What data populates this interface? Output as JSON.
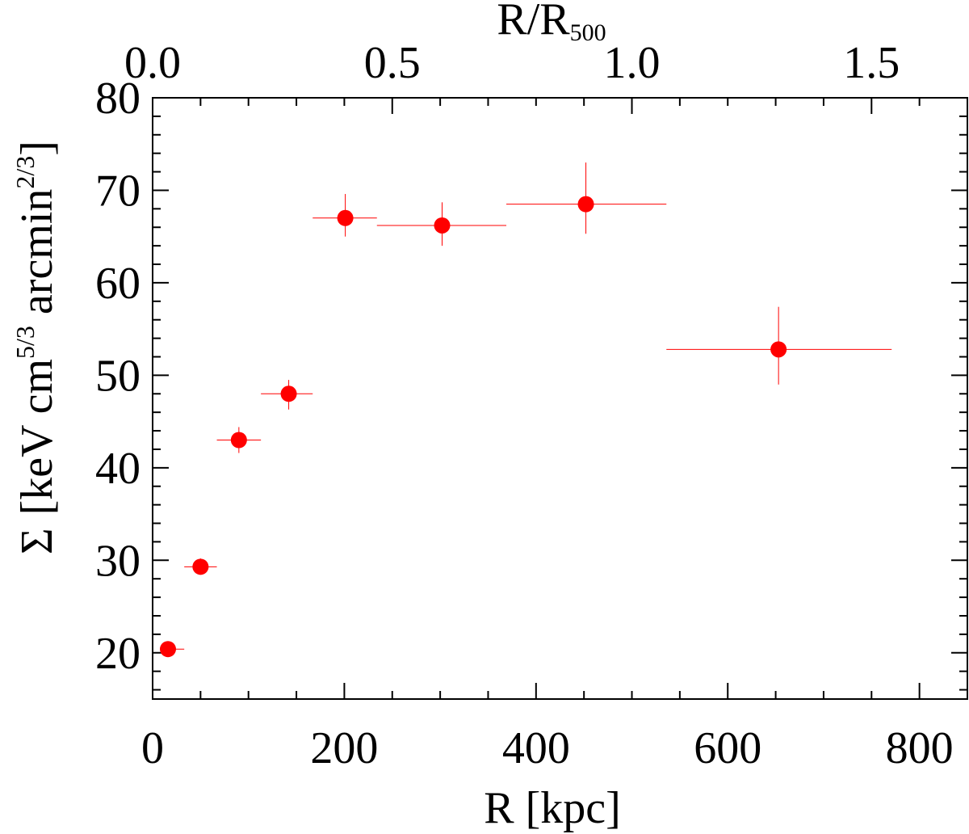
{
  "chart_data": {
    "type": "scatter",
    "x_axis": {
      "label": "R [kpc]",
      "range": [
        0,
        850
      ],
      "major_ticks": [
        0,
        200,
        400,
        600,
        800
      ],
      "minor_step": 50
    },
    "top_axis": {
      "label_main": "R/R",
      "label_sub": "500",
      "major_ticks": [
        0.0,
        0.5,
        1.0,
        1.5
      ],
      "tick_labels": [
        "0.0",
        "0.5",
        "1.0",
        "1.5"
      ],
      "minor_step": 0.1,
      "kpc_per_unit": 500
    },
    "y_axis": {
      "label_sigma": "Σ",
      "label_open": "[keV cm",
      "label_exp1": "5/3",
      "label_mid": " arcmin",
      "label_exp2": "2/3",
      "label_close": "]",
      "range": [
        15,
        80
      ],
      "major_ticks": [
        20,
        30,
        40,
        50,
        60,
        70,
        80
      ],
      "minor_step": 2
    },
    "series": [
      {
        "name": "data",
        "color": "#ff0000",
        "points": [
          {
            "x": 16,
            "y": 20.4,
            "xerr": [
              16,
              33
            ],
            "yerr": [
              19.9,
              20.9
            ]
          },
          {
            "x": 50,
            "y": 29.3,
            "xerr": [
              33,
              67
            ],
            "yerr": [
              28.5,
              30.2
            ]
          },
          {
            "x": 90,
            "y": 43.0,
            "xerr": [
              67,
              113
            ],
            "yerr": [
              41.6,
              44.4
            ]
          },
          {
            "x": 142,
            "y": 48.0,
            "xerr": [
              113,
              167
            ],
            "yerr": [
              46.3,
              49.5
            ]
          },
          {
            "x": 201,
            "y": 67.0,
            "xerr": [
              167,
              234
            ],
            "yerr": [
              65.0,
              69.6
            ]
          },
          {
            "x": 302,
            "y": 66.2,
            "xerr": [
              234,
              369
            ],
            "yerr": [
              64.0,
              68.7
            ]
          },
          {
            "x": 452,
            "y": 68.5,
            "xerr": [
              369,
              536
            ],
            "yerr": [
              65.3,
              73.0
            ]
          },
          {
            "x": 653,
            "y": 52.8,
            "xerr": [
              536,
              771
            ],
            "yerr": [
              49.0,
              57.4
            ]
          }
        ]
      }
    ]
  }
}
